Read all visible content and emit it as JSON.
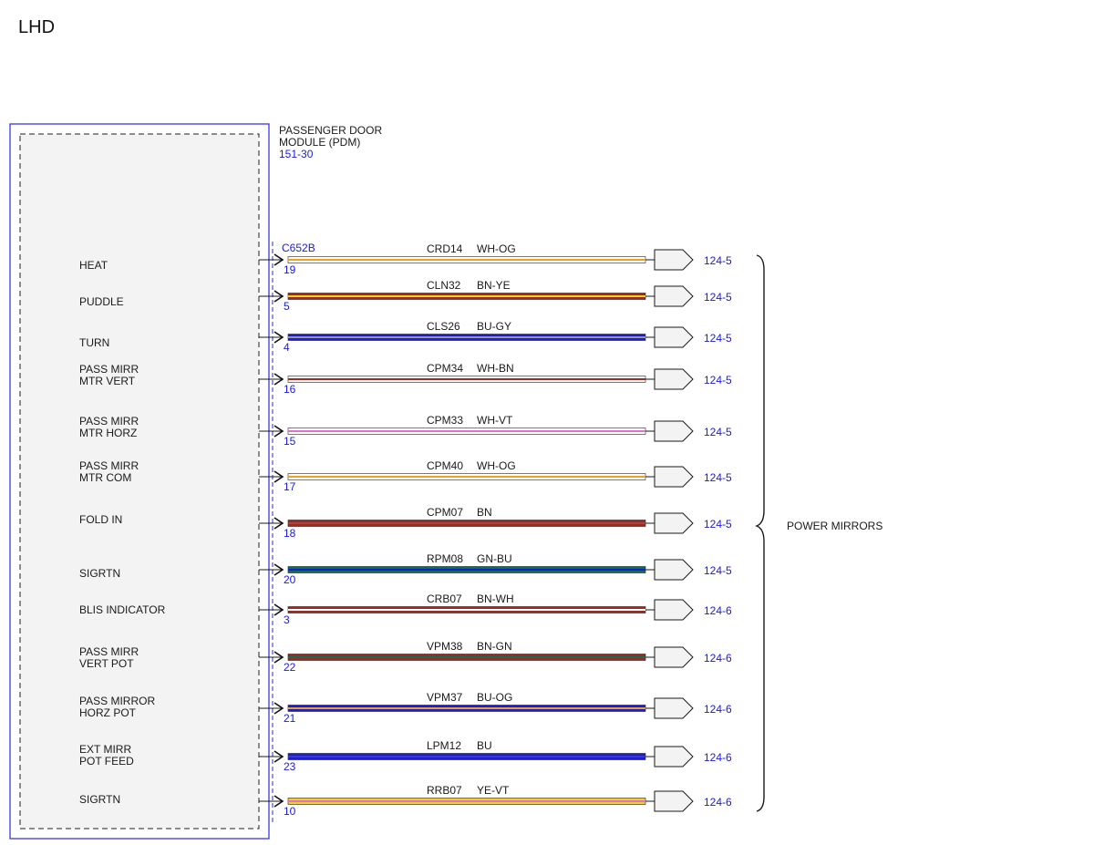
{
  "title": "LHD",
  "module": {
    "name_lines": [
      "PASSENGER DOOR",
      "MODULE (PDM)"
    ],
    "ref": "151-30",
    "connector": "C652B"
  },
  "group_label": "POWER MIRRORS",
  "colors": {
    "WH": "#ffffff",
    "OG": "#f0a020",
    "BN": "#9a2a22",
    "YE": "#f0d020",
    "BU": "#1c1cd2",
    "GY": "#9a9a9a",
    "VT": "#e070d8",
    "GN": "#106e52",
    "box_border": "#2a2ad8",
    "box_fill": "#f3f3f3",
    "ref_text": "#1a1adc"
  },
  "circuits": [
    {
      "label": [
        "HEAT"
      ],
      "pin": "19",
      "circuit": "CRD14",
      "color": "WH-OG",
      "ref": "124-5"
    },
    {
      "label": [
        "PUDDLE"
      ],
      "pin": "5",
      "circuit": "CLN32",
      "color": "BN-YE",
      "ref": "124-5"
    },
    {
      "label": [
        "TURN"
      ],
      "pin": "4",
      "circuit": "CLS26",
      "color": "BU-GY",
      "ref": "124-5"
    },
    {
      "label": [
        "PASS MIRR",
        "MTR VERT"
      ],
      "pin": "16",
      "circuit": "CPM34",
      "color": "WH-BN",
      "ref": "124-5"
    },
    {
      "label": [
        "PASS MIRR",
        "MTR HORZ"
      ],
      "pin": "15",
      "circuit": "CPM33",
      "color": "WH-VT",
      "ref": "124-5"
    },
    {
      "label": [
        "PASS MIRR",
        "MTR COM"
      ],
      "pin": "17",
      "circuit": "CPM40",
      "color": "WH-OG",
      "ref": "124-5"
    },
    {
      "label": [
        "FOLD IN"
      ],
      "pin": "18",
      "circuit": "CPM07",
      "color": "BN",
      "ref": "124-5"
    },
    {
      "label": [
        "SIGRTN"
      ],
      "pin": "20",
      "circuit": "RPM08",
      "color": "GN-BU",
      "ref": "124-5"
    },
    {
      "label": [
        "BLIS INDICATOR"
      ],
      "pin": "3",
      "circuit": "CRB07",
      "color": "BN-WH",
      "ref": "124-6"
    },
    {
      "label": [
        "PASS MIRR",
        "VERT POT"
      ],
      "pin": "22",
      "circuit": "VPM38",
      "color": "BN-GN",
      "ref": "124-6"
    },
    {
      "label": [
        "PASS MIRROR",
        "HORZ POT"
      ],
      "pin": "21",
      "circuit": "VPM37",
      "color": "BU-OG",
      "ref": "124-6"
    },
    {
      "label": [
        "EXT MIRR",
        "POT FEED"
      ],
      "pin": "23",
      "circuit": "LPM12",
      "color": "BU",
      "ref": "124-6"
    },
    {
      "label": [
        "SIGRTN"
      ],
      "pin": "10",
      "circuit": "RRB07",
      "color": "YE-VT",
      "ref": "124-6"
    }
  ]
}
